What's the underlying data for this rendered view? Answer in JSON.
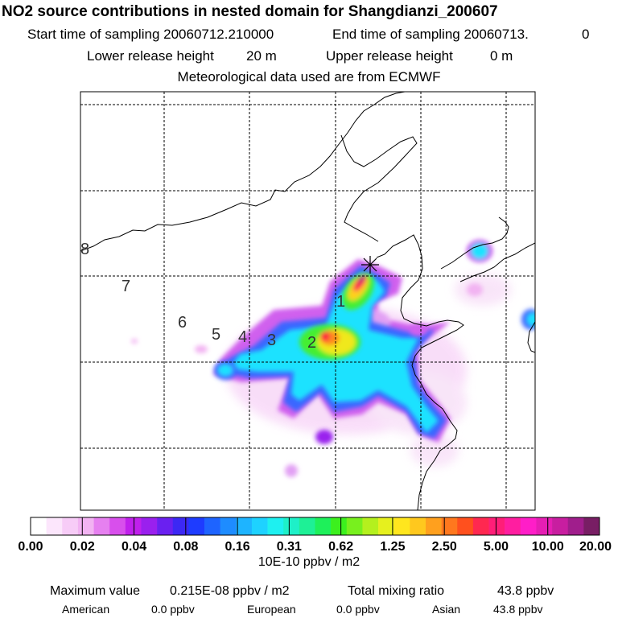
{
  "title": "NO2 source contributions in nested domain for Shangdianzi_200607",
  "sampling": {
    "start_label": "Start time of sampling 20060712.210000",
    "end_label": "End time of sampling 20060713.",
    "end_trailing": "0"
  },
  "release": {
    "lower_label": "Lower release height",
    "lower_value": "20 m",
    "upper_label": "Upper release height",
    "upper_value": "0 m"
  },
  "met_source": "Meteorological data used are from ECMWF",
  "day_labels": [
    "1",
    "2",
    "3",
    "4",
    "5",
    "6",
    "7",
    "8"
  ],
  "colorbar": {
    "ticks": [
      "0.00",
      "0.02",
      "0.04",
      "0.08",
      "0.16",
      "0.31",
      "0.62",
      "1.25",
      "2.50",
      "5.00",
      "10.00",
      "20.00"
    ],
    "unit": "10E-10 ppbv / m2",
    "colors": [
      "#ffffff",
      "#fce6fc",
      "#f7ccf7",
      "#f2b3f2",
      "#e680f0",
      "#d84fec",
      "#c020ec",
      "#9a20ee",
      "#6a20f0",
      "#3c28f4",
      "#1e3cff",
      "#1e64ff",
      "#1e8cff",
      "#1eb4ff",
      "#1ed2ff",
      "#1ef0f0",
      "#1ef0c8",
      "#1ef096",
      "#1ef05a",
      "#3cf01e",
      "#78f01e",
      "#b4f01e",
      "#e6f01e",
      "#ffe61e",
      "#ffc81e",
      "#ffa01e",
      "#ff781e",
      "#ff501e",
      "#ff2850",
      "#ff1e78",
      "#ff1ea0",
      "#ff1ec8",
      "#e61eb4",
      "#c81ea0",
      "#a01e8c",
      "#781e64"
    ]
  },
  "summary": {
    "max_label": "Maximum value",
    "max_value": "0.215E-08 ppbv / m2",
    "total_label": "Total mixing ratio",
    "total_value": "43.8 ppbv"
  },
  "regions": [
    {
      "name": "American",
      "value": "0.0 ppbv"
    },
    {
      "name": "European",
      "value": "0.0 ppbv"
    },
    {
      "name": "Asian",
      "value": "43.8 ppbv"
    }
  ]
}
